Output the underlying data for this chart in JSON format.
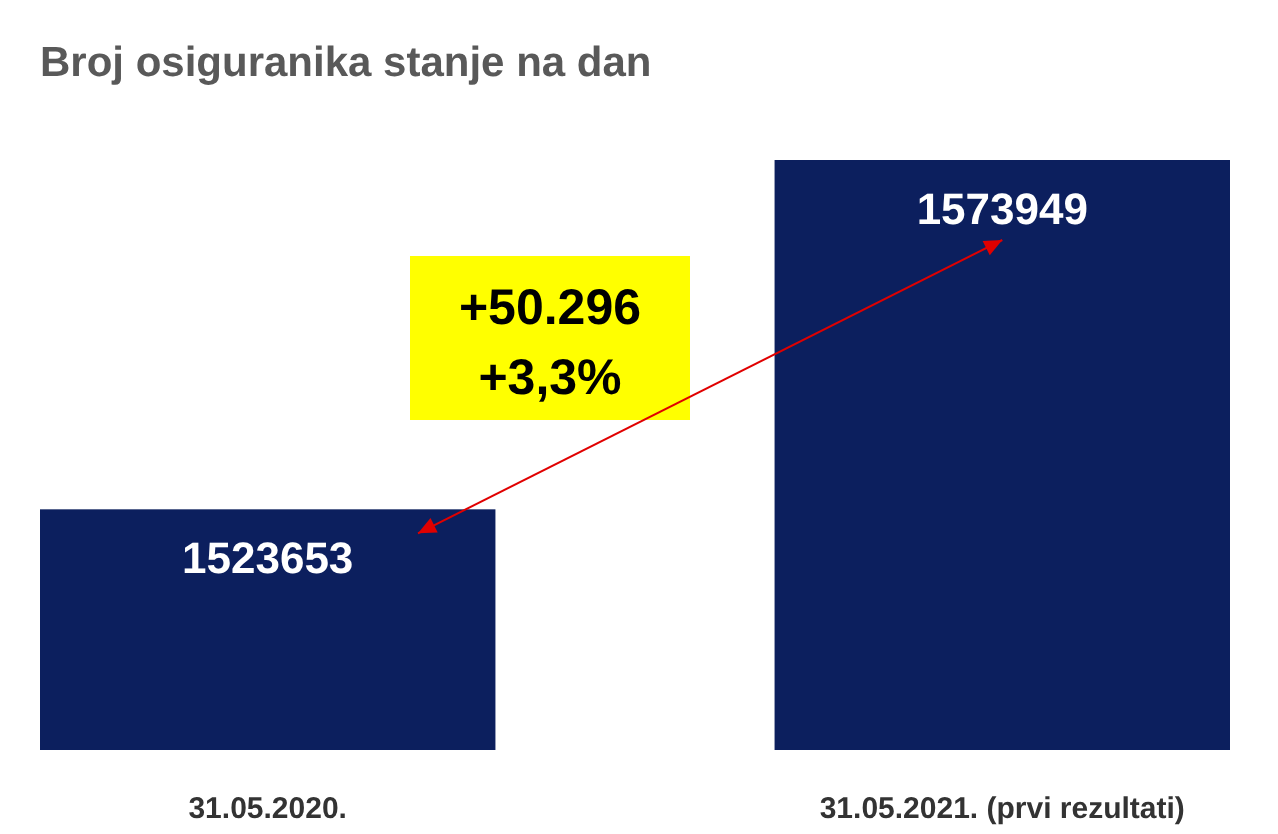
{
  "chart_data": {
    "type": "bar",
    "title": "Broj osiguranika stanje na dan",
    "categories": [
      "31.05.2020.",
      "31.05.2021. (prvi rezultati)"
    ],
    "values": [
      1523653,
      1573949
    ],
    "color": "#0c1f5e",
    "ylim": [
      1489000,
      1573949
    ],
    "tick_labels": "x",
    "data_labels": true,
    "annotations": [
      "+50.296",
      "+3,3%"
    ]
  }
}
